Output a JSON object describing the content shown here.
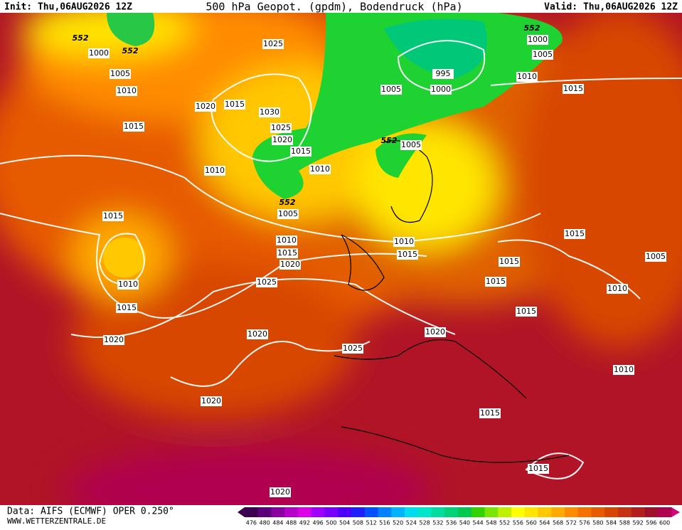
{
  "header": {
    "init": "Init: Thu,06AUG2026 12Z",
    "title": "500 hPa Geopot. (gpdm), Bodendruck (hPa)",
    "valid": "Valid: Thu,06AUG2026 12Z"
  },
  "isobar_labels": [
    "552",
    "552",
    "1000",
    "1005",
    "1010",
    "1020",
    "1015",
    "1030",
    "1025",
    "1025",
    "1020",
    "1015",
    "1010",
    "1010",
    "552",
    "1005",
    "1015",
    "1015",
    "1010",
    "1015",
    "1020",
    "1010",
    "1015",
    "1020",
    "1025",
    "1020",
    "1025",
    "1020",
    "1020",
    "552",
    "1000",
    "1005",
    "995",
    "1000",
    "1005",
    "1010",
    "1015",
    "552",
    "1005",
    "1010",
    "1015",
    "1015",
    "1005",
    "1015",
    "1015",
    "1010",
    "1015",
    "1020",
    "1010",
    "1015",
    "1015"
  ],
  "footer": {
    "source": "Data: AIFS (ECMWF) OPER 0.250°",
    "site": "WWW.WETTERZENTRALE.DE"
  },
  "legend": {
    "values": [
      476,
      480,
      484,
      488,
      492,
      496,
      500,
      504,
      508,
      512,
      516,
      520,
      524,
      528,
      532,
      536,
      540,
      544,
      548,
      552,
      556,
      560,
      564,
      568,
      572,
      576,
      580,
      584,
      588,
      592,
      596,
      600
    ],
    "colors": [
      "#3d0050",
      "#5a0078",
      "#8a00a0",
      "#b400c8",
      "#dc00e6",
      "#a000ff",
      "#7800ff",
      "#4b00ff",
      "#1e1eff",
      "#0050ff",
      "#0082ff",
      "#00b4ff",
      "#00dcf0",
      "#00e6c8",
      "#00dca0",
      "#00d278",
      "#00c850",
      "#32d200",
      "#78e600",
      "#bef000",
      "#ffff00",
      "#ffe600",
      "#ffc800",
      "#ffaa00",
      "#ff8c00",
      "#f57000",
      "#e65a00",
      "#d74600",
      "#c83214",
      "#b41e1e",
      "#a0102a",
      "#b00050"
    ]
  }
}
